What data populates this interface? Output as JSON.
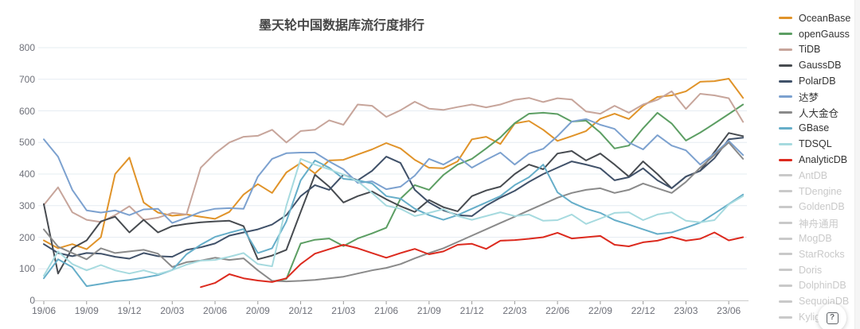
{
  "page": {
    "background": "#ffffff",
    "help_button": {
      "icon": "boxed-question-mark",
      "label": "?"
    }
  },
  "colors": {
    "axis_label": "#6E7079",
    "grid_line": "#E6ECF2",
    "axis_line": "#cccccc",
    "tick": "#999999",
    "title": "#464646",
    "legend_active_text": "#333333",
    "legend_inactive": "#c9c9c9"
  },
  "chart_data": {
    "type": "line",
    "title": "墨天轮中国数据库流行度排行",
    "xlabel": "",
    "ylabel": "",
    "ylim": [
      0,
      800
    ],
    "y_ticks": [
      0,
      100,
      200,
      300,
      400,
      500,
      600,
      700,
      800
    ],
    "grid": true,
    "legend_position": "right",
    "x": [
      "19/06",
      "19/07",
      "19/08",
      "19/09",
      "19/10",
      "19/11",
      "19/12",
      "20/01",
      "20/02",
      "20/03",
      "20/04",
      "20/05",
      "20/06",
      "20/07",
      "20/08",
      "20/09",
      "20/10",
      "20/11",
      "20/12",
      "21/01",
      "21/02",
      "21/03",
      "21/04",
      "21/05",
      "21/06",
      "21/07",
      "21/08",
      "21/09",
      "21/10",
      "21/11",
      "21/12",
      "22/01",
      "22/02",
      "22/03",
      "22/04",
      "22/05",
      "22/06",
      "22/07",
      "22/08",
      "22/09",
      "22/10",
      "22/11",
      "22/12",
      "23/01",
      "23/02",
      "23/03",
      "23/04",
      "23/05",
      "23/06",
      "23/07"
    ],
    "x_tick_labels": [
      "19/06",
      "19/09",
      "19/12",
      "20/03",
      "20/06",
      "20/09",
      "20/12",
      "21/03",
      "21/06",
      "21/09",
      "21/12",
      "22/03",
      "22/06",
      "22/09",
      "22/12",
      "23/03",
      "23/06"
    ],
    "series": [
      {
        "name": "OceanBase",
        "color": "#E09329",
        "active": true,
        "values": [
          190,
          165,
          178,
          162,
          200,
          400,
          452,
          310,
          278,
          268,
          272,
          265,
          258,
          280,
          335,
          368,
          340,
          405,
          435,
          402,
          443,
          445,
          462,
          478,
          498,
          481,
          445,
          420,
          418,
          440,
          510,
          518,
          495,
          560,
          568,
          540,
          505,
          520,
          536,
          575,
          591,
          574,
          616,
          644,
          649,
          662,
          692,
          694,
          702,
          641
        ]
      },
      {
        "name": "openGauss",
        "color": "#5C9E63",
        "active": true,
        "values": [
          null,
          null,
          null,
          null,
          null,
          null,
          null,
          null,
          null,
          null,
          null,
          null,
          null,
          null,
          null,
          null,
          60,
          68,
          180,
          192,
          196,
          172,
          196,
          212,
          230,
          322,
          365,
          350,
          397,
          430,
          448,
          481,
          516,
          561,
          591,
          594,
          590,
          566,
          569,
          531,
          481,
          490,
          545,
          594,
          560,
          506,
          531,
          560,
          590,
          620
        ]
      },
      {
        "name": "TiDB",
        "color": "#C7A59B",
        "active": true,
        "values": [
          302,
          358,
          279,
          255,
          248,
          270,
          298,
          255,
          262,
          277,
          272,
          420,
          465,
          500,
          518,
          521,
          540,
          500,
          536,
          540,
          570,
          556,
          620,
          616,
          581,
          602,
          629,
          607,
          603,
          612,
          620,
          611,
          620,
          635,
          641,
          628,
          640,
          636,
          598,
          591,
          616,
          594,
          620,
          635,
          662,
          606,
          654,
          649,
          640,
          565
        ]
      },
      {
        "name": "GaussDB",
        "color": "#474B50",
        "active": true,
        "values": [
          305,
          85,
          165,
          190,
          250,
          265,
          215,
          255,
          215,
          235,
          242,
          247,
          250,
          252,
          235,
          130,
          142,
          160,
          280,
          398,
          360,
          310,
          330,
          345,
          320,
          298,
          280,
          318,
          295,
          282,
          330,
          348,
          360,
          400,
          430,
          415,
          465,
          473,
          443,
          465,
          430,
          392,
          440,
          400,
          355,
          392,
          410,
          470,
          530,
          520
        ]
      },
      {
        "name": "PolarDB",
        "color": "#405169",
        "active": true,
        "values": [
          178,
          150,
          140,
          150,
          148,
          138,
          132,
          150,
          140,
          138,
          160,
          168,
          180,
          205,
          215,
          225,
          240,
          270,
          330,
          365,
          350,
          398,
          380,
          410,
          455,
          435,
          350,
          310,
          285,
          270,
          267,
          300,
          325,
          347,
          375,
          400,
          420,
          440,
          430,
          418,
          380,
          390,
          418,
          380,
          355,
          392,
          410,
          450,
          510,
          515
        ]
      },
      {
        "name": "达梦",
        "color": "#7CA1CF",
        "active": true,
        "values": [
          510,
          455,
          350,
          285,
          278,
          285,
          270,
          288,
          290,
          245,
          262,
          280,
          290,
          292,
          290,
          392,
          448,
          466,
          468,
          468,
          440,
          415,
          372,
          377,
          352,
          360,
          395,
          448,
          430,
          455,
          420,
          445,
          468,
          430,
          465,
          480,
          520,
          566,
          574,
          556,
          543,
          500,
          478,
          523,
          490,
          475,
          430,
          465,
          505,
          460
        ]
      },
      {
        "name": "人大金仓",
        "color": "#8A8A8A",
        "active": true,
        "values": [
          225,
          170,
          150,
          130,
          165,
          150,
          155,
          160,
          148,
          106,
          121,
          126,
          135,
          128,
          133,
          95,
          62,
          60,
          62,
          65,
          70,
          75,
          85,
          95,
          103,
          115,
          133,
          150,
          165,
          185,
          205,
          225,
          245,
          265,
          285,
          305,
          325,
          340,
          350,
          355,
          340,
          350,
          370,
          355,
          340,
          375,
          420,
          460,
          500,
          448
        ]
      },
      {
        "name": "GBase",
        "color": "#66AEC9",
        "active": true,
        "values": [
          70,
          130,
          105,
          45,
          52,
          60,
          65,
          72,
          80,
          96,
          146,
          176,
          201,
          214,
          226,
          150,
          165,
          250,
          380,
          443,
          420,
          385,
          380,
          370,
          330,
          322,
          290,
          270,
          255,
          270,
          290,
          310,
          330,
          365,
          390,
          430,
          342,
          310,
          290,
          277,
          254,
          240,
          225,
          210,
          215,
          230,
          246,
          275,
          305,
          335
        ]
      },
      {
        "name": "TDSQL",
        "color": "#A6DADF",
        "active": true,
        "values": [
          78,
          155,
          115,
          95,
          112,
          95,
          85,
          95,
          83,
          96,
          113,
          126,
          128,
          138,
          150,
          115,
          108,
          300,
          448,
          430,
          415,
          398,
          377,
          340,
          300,
          290,
          267,
          277,
          289,
          267,
          255,
          267,
          279,
          267,
          272,
          252,
          254,
          272,
          242,
          259,
          277,
          279,
          254,
          272,
          279,
          252,
          247,
          254,
          304,
          330
        ]
      },
      {
        "name": "AnalyticDB",
        "color": "#DC2A1E",
        "active": true,
        "values": [
          null,
          null,
          null,
          null,
          null,
          null,
          null,
          null,
          null,
          null,
          null,
          42,
          55,
          83,
          70,
          63,
          58,
          70,
          115,
          148,
          162,
          176,
          165,
          150,
          135,
          150,
          163,
          146,
          155,
          176,
          179,
          163,
          189,
          191,
          195,
          200,
          214,
          196,
          200,
          204,
          176,
          171,
          184,
          189,
          201,
          189,
          195,
          215,
          190,
          200
        ]
      },
      {
        "name": "AntDB",
        "color": "#c9c9c9",
        "active": false,
        "values": []
      },
      {
        "name": "TDengine",
        "color": "#c9c9c9",
        "active": false,
        "values": []
      },
      {
        "name": "GoldenDB",
        "color": "#c9c9c9",
        "active": false,
        "values": []
      },
      {
        "name": "神舟通用",
        "color": "#c9c9c9",
        "active": false,
        "values": []
      },
      {
        "name": "MogDB",
        "color": "#c9c9c9",
        "active": false,
        "values": []
      },
      {
        "name": "StarRocks",
        "color": "#c9c9c9",
        "active": false,
        "values": []
      },
      {
        "name": "Doris",
        "color": "#c9c9c9",
        "active": false,
        "values": []
      },
      {
        "name": "DolphinDB",
        "color": "#c9c9c9",
        "active": false,
        "values": []
      },
      {
        "name": "SequoiaDB",
        "color": "#c9c9c9",
        "active": false,
        "values": []
      },
      {
        "name": "Kyligence",
        "color": "#c9c9c9",
        "active": false,
        "values": []
      }
    ]
  }
}
